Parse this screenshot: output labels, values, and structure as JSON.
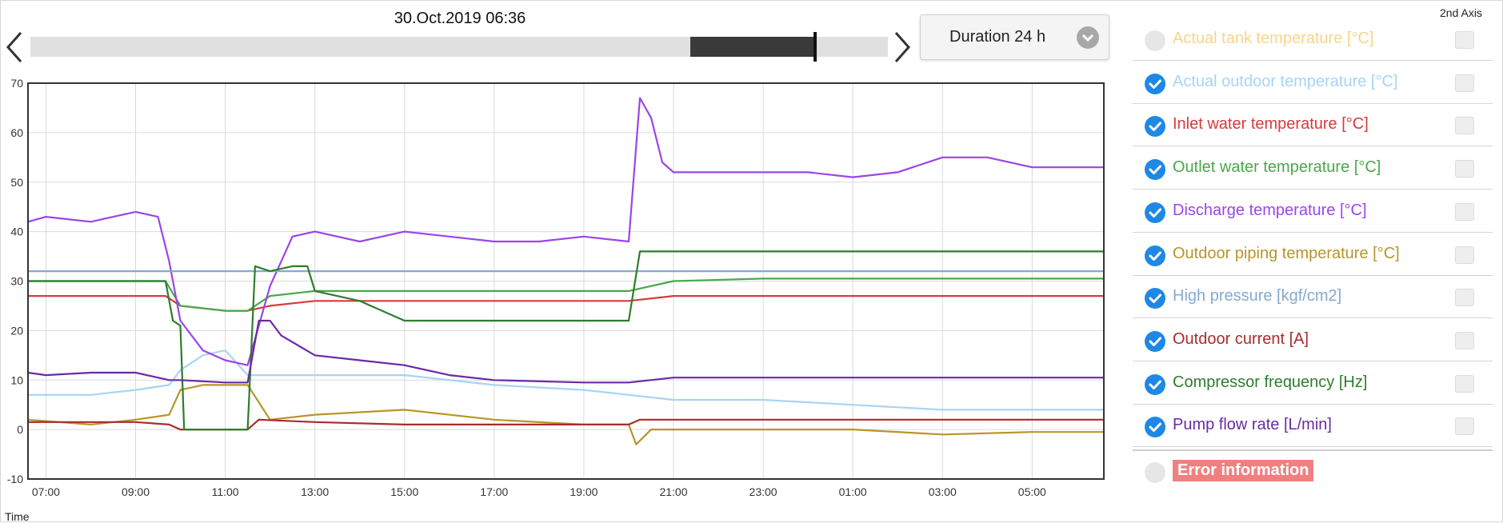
{
  "header": {
    "timestamp": "30.Oct.2019 06:36",
    "duration_label": "Duration 24 h",
    "slider_window_fraction": [
      0.77,
      0.915
    ],
    "second_axis_label": "2nd Axis"
  },
  "legend": {
    "items": [
      {
        "label": "Actual tank temperature [°C]",
        "color": "#f7d58a",
        "checked": false
      },
      {
        "label": "Actual outdoor temperature [°C]",
        "color": "#a8d4f5",
        "checked": true
      },
      {
        "label": "Inlet water temperature [°C]",
        "color": "#d83a3a",
        "checked": true
      },
      {
        "label": "Outlet water temperature [°C]",
        "color": "#4aa84a",
        "checked": true
      },
      {
        "label": "Discharge temperature [°C]",
        "color": "#9b45e8",
        "checked": true
      },
      {
        "label": "Outdoor piping temperature [°C]",
        "color": "#b8952a",
        "checked": true
      },
      {
        "label": "High pressure [kgf/cm2]",
        "color": "#86a9cf",
        "checked": true
      },
      {
        "label": "Outdoor current [A]",
        "color": "#a92c2c",
        "checked": true
      },
      {
        "label": "Compressor frequency [Hz]",
        "color": "#2e7d2e",
        "checked": true
      },
      {
        "label": "Pump flow rate [L/min]",
        "color": "#6a2aa5",
        "checked": true
      }
    ],
    "error": {
      "label": "Error information",
      "checked": false,
      "badge_color": "#f08080"
    }
  },
  "chart_data": {
    "type": "line",
    "xlabel": "Time",
    "ylabel": "",
    "ylim": [
      -10,
      70
    ],
    "yticks": [
      -10,
      0,
      10,
      20,
      30,
      40,
      50,
      60,
      70
    ],
    "xlim": [
      "06:36",
      "06:36"
    ],
    "xticks": [
      "07:00",
      "09:00",
      "11:00",
      "13:00",
      "15:00",
      "17:00",
      "19:00",
      "21:00",
      "23:00",
      "01:00",
      "03:00",
      "05:00"
    ],
    "grid": true,
    "series": [
      {
        "name": "Actual outdoor temperature [°C]",
        "color": "#a8d4f5",
        "x": [
          "06:36",
          "08:00",
          "09:00",
          "09:45",
          "10:00",
          "10:30",
          "11:00",
          "11:30",
          "12:00",
          "13:00",
          "15:00",
          "17:00",
          "19:00",
          "20:00",
          "21:00",
          "23:00",
          "01:00",
          "03:00",
          "05:00",
          "06:36"
        ],
        "y": [
          7,
          7,
          8,
          9,
          12,
          15,
          16,
          11,
          11,
          11,
          11,
          9,
          8,
          7,
          6,
          6,
          5,
          4,
          4,
          4
        ]
      },
      {
        "name": "Inlet water temperature [°C]",
        "color": "#d83a3a",
        "x": [
          "06:36",
          "09:00",
          "09:40",
          "10:00",
          "11:00",
          "11:30",
          "12:00",
          "13:00",
          "15:00",
          "17:00",
          "19:00",
          "20:00",
          "21:00",
          "23:00",
          "01:00",
          "03:00",
          "05:00",
          "06:36"
        ],
        "y": [
          27,
          27,
          27,
          25,
          24,
          24,
          25,
          26,
          26,
          26,
          26,
          26,
          27,
          27,
          27,
          27,
          27,
          27
        ]
      },
      {
        "name": "Outlet water temperature [°C]",
        "color": "#4aa84a",
        "x": [
          "06:36",
          "09:00",
          "09:40",
          "10:00",
          "11:00",
          "11:30",
          "12:00",
          "13:00",
          "15:00",
          "17:00",
          "19:00",
          "20:00",
          "21:00",
          "23:00",
          "01:00",
          "03:00",
          "05:00",
          "06:36"
        ],
        "y": [
          30,
          30,
          30,
          25,
          24,
          24,
          27,
          28,
          28,
          28,
          28,
          28,
          30,
          30.5,
          30.5,
          30.5,
          30.5,
          30.5
        ]
      },
      {
        "name": "Discharge temperature [°C]",
        "color": "#9b45e8",
        "x": [
          "06:36",
          "07:00",
          "08:00",
          "09:00",
          "09:30",
          "09:45",
          "10:00",
          "10:30",
          "11:00",
          "11:30",
          "12:00",
          "12:30",
          "13:00",
          "14:00",
          "15:00",
          "16:00",
          "17:00",
          "18:00",
          "19:00",
          "20:00",
          "20:15",
          "20:30",
          "20:45",
          "21:00",
          "22:00",
          "23:00",
          "00:00",
          "01:00",
          "02:00",
          "03:00",
          "04:00",
          "05:00",
          "06:00",
          "06:36"
        ],
        "y": [
          42,
          43,
          42,
          44,
          43,
          34,
          22,
          16,
          14,
          13,
          29,
          39,
          40,
          38,
          40,
          39,
          38,
          38,
          39,
          38,
          67,
          63,
          54,
          52,
          52,
          52,
          52,
          51,
          52,
          55,
          55,
          53,
          53,
          53
        ]
      },
      {
        "name": "Outdoor piping temperature [°C]",
        "color": "#b8952a",
        "x": [
          "06:36",
          "08:00",
          "09:00",
          "09:45",
          "10:00",
          "10:30",
          "11:00",
          "11:30",
          "12:00",
          "13:00",
          "15:00",
          "17:00",
          "19:00",
          "20:00",
          "20:10",
          "20:30",
          "21:00",
          "23:00",
          "01:00",
          "03:00",
          "05:00",
          "06:36"
        ],
        "y": [
          2,
          1,
          2,
          3,
          8,
          9,
          9,
          9,
          2,
          3,
          4,
          2,
          1,
          1,
          -3,
          0,
          0,
          0,
          0,
          -1,
          -0.5,
          -0.5
        ]
      },
      {
        "name": "High pressure [kgf/cm2]",
        "color": "#86a9cf",
        "x": [
          "06:36",
          "06:36"
        ],
        "y": [
          32,
          32
        ]
      },
      {
        "name": "Outdoor current [A]",
        "color": "#a92c2c",
        "x": [
          "06:36",
          "09:00",
          "09:45",
          "10:00",
          "11:00",
          "11:30",
          "11:45",
          "13:00",
          "15:00",
          "17:00",
          "19:00",
          "20:00",
          "20:15",
          "21:00",
          "23:00",
          "01:00",
          "03:00",
          "05:00",
          "06:36"
        ],
        "y": [
          1.5,
          1.5,
          1,
          0,
          0,
          0,
          2,
          1.5,
          1,
          1,
          1,
          1,
          2,
          2,
          2,
          2,
          2,
          2,
          2
        ]
      },
      {
        "name": "Compressor frequency [Hz]",
        "color": "#2e7d2e",
        "x": [
          "06:36",
          "09:00",
          "09:40",
          "09:50",
          "10:00",
          "10:05",
          "11:30",
          "11:40",
          "12:00",
          "12:30",
          "12:50",
          "13:00",
          "14:00",
          "15:00",
          "16:00",
          "17:00",
          "18:00",
          "19:00",
          "20:00",
          "20:15",
          "21:00",
          "23:00",
          "01:00",
          "03:00",
          "05:00",
          "06:36"
        ],
        "y": [
          30,
          30,
          30,
          22,
          21,
          0,
          0,
          33,
          32,
          33,
          33,
          28,
          26,
          22,
          22,
          22,
          22,
          22,
          22,
          36,
          36,
          36,
          36,
          36,
          36,
          36
        ]
      },
      {
        "name": "Pump flow rate [L/min]",
        "color": "#6a2aa5",
        "x": [
          "06:36",
          "07:00",
          "08:00",
          "09:00",
          "09:45",
          "10:00",
          "11:00",
          "11:30",
          "11:45",
          "12:00",
          "12:15",
          "13:00",
          "14:00",
          "15:00",
          "16:00",
          "17:00",
          "19:00",
          "20:00",
          "21:00",
          "23:00",
          "01:00",
          "03:00",
          "05:00",
          "06:36"
        ],
        "y": [
          11.5,
          11,
          11.5,
          11.5,
          10,
          10,
          9.5,
          9.5,
          22,
          22,
          19,
          15,
          14,
          13,
          11,
          10,
          9.5,
          9.5,
          10.5,
          10.5,
          10.5,
          10.5,
          10.5,
          10.5
        ]
      }
    ]
  }
}
